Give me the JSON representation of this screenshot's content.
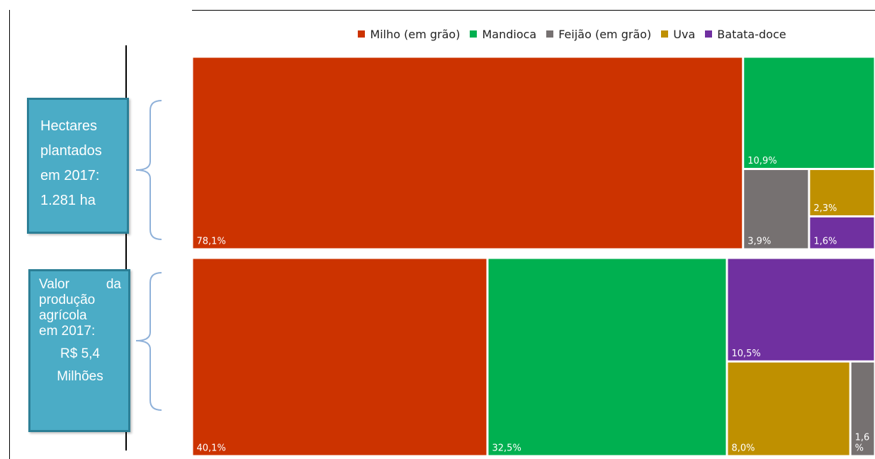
{
  "legend": [
    {
      "name": "Milho (em grão)",
      "color": "#cc3300"
    },
    {
      "name": "Mandioca",
      "color": "#00b050"
    },
    {
      "name": "Feijão (em grão)",
      "color": "#767171"
    },
    {
      "name": "Uva",
      "color": "#bf9000"
    },
    {
      "name": "Batata-doce",
      "color": "#7030a0"
    }
  ],
  "box1": {
    "line1": "Hectares",
    "line2": "plantados",
    "line3": "em 2017:",
    "line4": "1.281 ha"
  },
  "box2": {
    "word1": "Valor",
    "word2": "da",
    "line2": "produção",
    "line3": "agrícola",
    "line4": "em 2017:",
    "line5": "R$ 5,4",
    "line6": "Milhões"
  },
  "chart_data": [
    {
      "type": "treemap",
      "group": "Hectares plantados em 2017: 1.281 ha",
      "series": [
        {
          "name": "Milho (em grão)",
          "value": 78.1,
          "label": "78,1%"
        },
        {
          "name": "Mandioca",
          "value": 10.9,
          "label": "10,9%"
        },
        {
          "name": "Feijão (em grão)",
          "value": 3.9,
          "label": "3,9%"
        },
        {
          "name": "Uva",
          "value": 2.3,
          "label": "2,3%"
        },
        {
          "name": "Batata-doce",
          "value": 1.6,
          "label": "1,6%"
        }
      ]
    },
    {
      "type": "treemap",
      "group": "Valor da produção agrícola em 2017: R$ 5,4 Milhões",
      "series": [
        {
          "name": "Milho (em grão)",
          "value": 40.1,
          "label": "40,1%"
        },
        {
          "name": "Mandioca",
          "value": 32.5,
          "label": "32,5%"
        },
        {
          "name": "Batata-doce",
          "value": 10.5,
          "label": "10,5%"
        },
        {
          "name": "Uva",
          "value": 8.0,
          "label": "8,0%"
        },
        {
          "name": "Feijão (em grão)",
          "value": 1.6,
          "label": "1,6\n%"
        }
      ]
    }
  ]
}
